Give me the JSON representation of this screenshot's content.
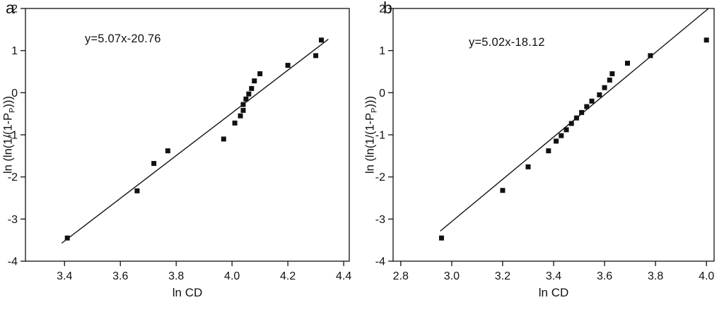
{
  "figure": {
    "background": "#ffffff",
    "ink_color": "#111111"
  },
  "chart_data": [
    {
      "type": "scatter",
      "panel": "a",
      "equation": "y=5.07x-20.76",
      "xlabel": "ln CD",
      "ylabel": "ln (ln(1/(1-PP)))",
      "ylabel_parts": {
        "pre": "ln (ln(1/(1-P",
        "sub": "P",
        "post": ")))"
      },
      "xlim": [
        3.26,
        4.42
      ],
      "ylim": [
        -4,
        2
      ],
      "xticks": [
        3.4,
        3.6,
        3.8,
        4.0,
        4.2,
        4.4
      ],
      "xtick_labels": [
        "3.4",
        "3.6",
        "3.8",
        "4.0",
        "4.2",
        "4.4"
      ],
      "yticks": [
        -4,
        -3,
        -2,
        -1,
        0,
        1,
        2
      ],
      "ytick_labels": [
        "-4",
        "-3",
        "-2",
        "-1",
        "0",
        "1",
        "2"
      ],
      "marker": "filled-square",
      "grid": false,
      "legend": "none",
      "points": [
        [
          3.41,
          -3.45
        ],
        [
          3.66,
          -2.33
        ],
        [
          3.72,
          -1.68
        ],
        [
          3.77,
          -1.38
        ],
        [
          3.97,
          -1.1
        ],
        [
          4.01,
          -0.72
        ],
        [
          4.03,
          -0.55
        ],
        [
          4.04,
          -0.42
        ],
        [
          4.04,
          -0.28
        ],
        [
          4.05,
          -0.15
        ],
        [
          4.06,
          -0.03
        ],
        [
          4.07,
          0.1
        ],
        [
          4.08,
          0.28
        ],
        [
          4.1,
          0.45
        ],
        [
          4.2,
          0.65
        ],
        [
          4.3,
          0.88
        ],
        [
          4.32,
          1.25
        ]
      ],
      "fit_line": {
        "slope": 5.07,
        "intercept": -20.76,
        "x_start": 3.39,
        "x_end": 4.345
      }
    },
    {
      "type": "scatter",
      "panel": "b",
      "equation": "y=5.02x-18.12",
      "xlabel": "ln CD",
      "ylabel": "ln (ln(1/(1-PP)))",
      "ylabel_parts": {
        "pre": "ln (ln(1/(1-P",
        "sub": "P",
        "post": ")))"
      },
      "xlim": [
        2.77,
        4.03
      ],
      "ylim": [
        -4,
        2
      ],
      "xticks": [
        2.8,
        3.0,
        3.2,
        3.4,
        3.6,
        3.8,
        4.0
      ],
      "xtick_labels": [
        "2.8",
        "3.0",
        "3.2",
        "3.4",
        "3.6",
        "3.8",
        "4.0"
      ],
      "yticks": [
        -4,
        -3,
        -2,
        -1,
        0,
        1,
        2
      ],
      "ytick_labels": [
        "-4",
        "-3",
        "-2",
        "-1",
        "0",
        "1",
        "2"
      ],
      "marker": "filled-square",
      "grid": false,
      "legend": "none",
      "points": [
        [
          2.96,
          -3.45
        ],
        [
          3.2,
          -2.32
        ],
        [
          3.3,
          -1.76
        ],
        [
          3.38,
          -1.38
        ],
        [
          3.41,
          -1.15
        ],
        [
          3.43,
          -1.02
        ],
        [
          3.45,
          -0.88
        ],
        [
          3.47,
          -0.73
        ],
        [
          3.49,
          -0.6
        ],
        [
          3.51,
          -0.47
        ],
        [
          3.53,
          -0.33
        ],
        [
          3.55,
          -0.2
        ],
        [
          3.58,
          -0.05
        ],
        [
          3.6,
          0.12
        ],
        [
          3.62,
          0.3
        ],
        [
          3.63,
          0.45
        ],
        [
          3.69,
          0.7
        ],
        [
          3.78,
          0.88
        ],
        [
          4.0,
          1.25
        ]
      ],
      "fit_line": {
        "slope": 5.02,
        "intercept": -18.12,
        "x_start": 2.955,
        "x_end": 4.025
      }
    }
  ]
}
